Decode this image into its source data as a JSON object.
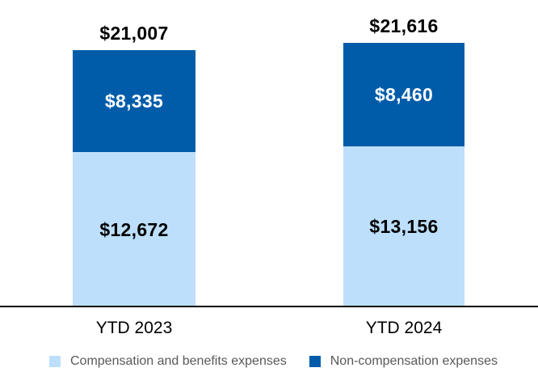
{
  "chart_data": {
    "type": "bar",
    "stacked": true,
    "orientation": "vertical",
    "categories": [
      "YTD 2023",
      "YTD 2024"
    ],
    "series": [
      {
        "name": "Compensation and benefits expenses",
        "color": "#BDDFFB",
        "label_color": "#000000",
        "values": [
          12672,
          13156
        ],
        "labels": [
          "$12,672",
          "$13,156"
        ]
      },
      {
        "name": "Non-compensation expenses",
        "color": "#005CA9",
        "label_color": "#ffffff",
        "values": [
          8335,
          8460
        ],
        "labels": [
          "$8,335",
          "$8,460"
        ]
      }
    ],
    "totals": [
      21007,
      21616
    ],
    "total_labels": [
      "$21,007",
      "$21,616"
    ],
    "ylim": [
      0,
      21616
    ],
    "grid": false,
    "axis_line_color": "#000000",
    "legend_position": "bottom"
  },
  "legend": {
    "items": [
      {
        "label": "Compensation and benefits expenses",
        "color": "#BDDFFB"
      },
      {
        "label": "Non-compensation expenses",
        "color": "#005CA9"
      }
    ]
  }
}
